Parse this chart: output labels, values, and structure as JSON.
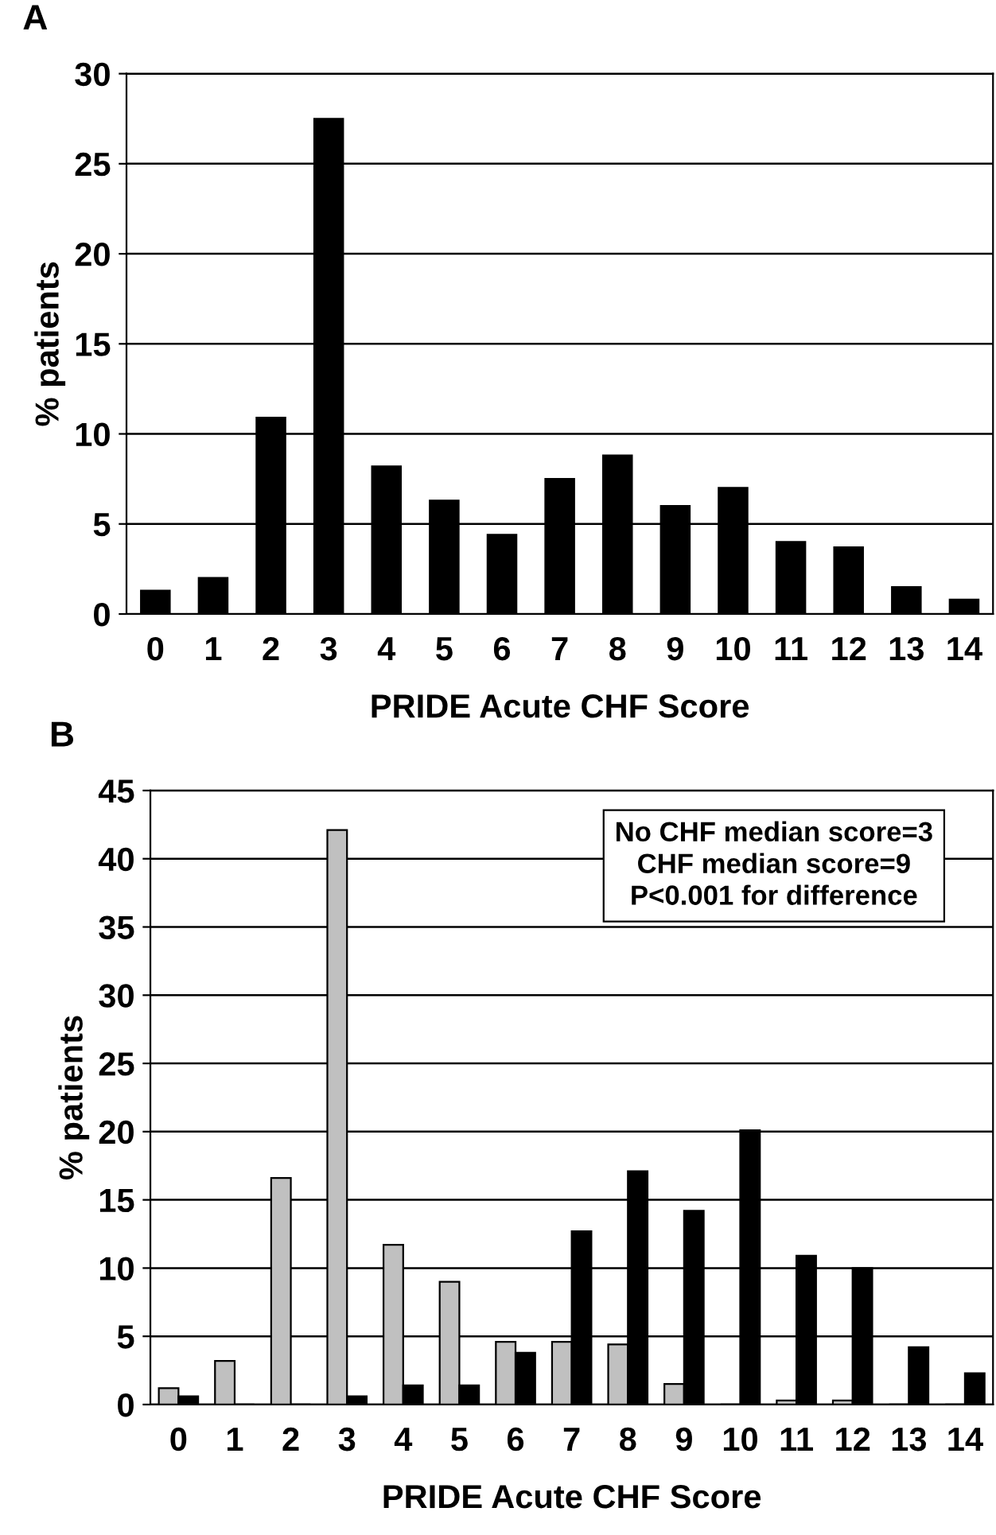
{
  "chart_data": [
    {
      "type": "bar",
      "title": "A",
      "xlabel": "PRIDE Acute CHF Score",
      "ylabel": "% patients",
      "categories": [
        "0",
        "1",
        "2",
        "3",
        "4",
        "5",
        "6",
        "7",
        "8",
        "9",
        "10",
        "11",
        "12",
        "13",
        "14"
      ],
      "series": [
        {
          "color": "#000000",
          "values": [
            1.3,
            2.0,
            10.9,
            27.5,
            8.2,
            6.3,
            4.4,
            7.5,
            8.8,
            6.0,
            7.0,
            4.0,
            3.7,
            1.5,
            0.8
          ]
        }
      ],
      "ylim": [
        0,
        30
      ],
      "yticks": [
        0,
        5,
        10,
        15,
        20,
        25,
        30
      ],
      "grid": "y",
      "legend": false
    },
    {
      "type": "bar",
      "title": "B",
      "xlabel": "PRIDE Acute CHF Score",
      "ylabel": "% patients",
      "categories": [
        "0",
        "1",
        "2",
        "3",
        "4",
        "5",
        "6",
        "7",
        "8",
        "9",
        "10",
        "11",
        "12",
        "13",
        "14"
      ],
      "series": [
        {
          "color": "#c0c0c0",
          "values": [
            1.2,
            3.2,
            16.6,
            42.1,
            11.7,
            9.0,
            4.6,
            4.6,
            4.4,
            1.5,
            0,
            0.3,
            0.3,
            0,
            0
          ]
        },
        {
          "color": "#000000",
          "values": [
            0.6,
            0,
            0,
            0.6,
            1.4,
            1.4,
            3.8,
            12.7,
            17.1,
            14.2,
            20.1,
            10.9,
            10.0,
            4.2,
            2.3
          ]
        }
      ],
      "ylim": [
        0,
        45
      ],
      "yticks": [
        0,
        5,
        10,
        15,
        20,
        25,
        30,
        35,
        40,
        45
      ],
      "grid": "y",
      "legend": false,
      "annotations": [
        "No CHF median score=3",
        "CHF median score=9",
        "P<0.001 for difference"
      ]
    }
  ]
}
